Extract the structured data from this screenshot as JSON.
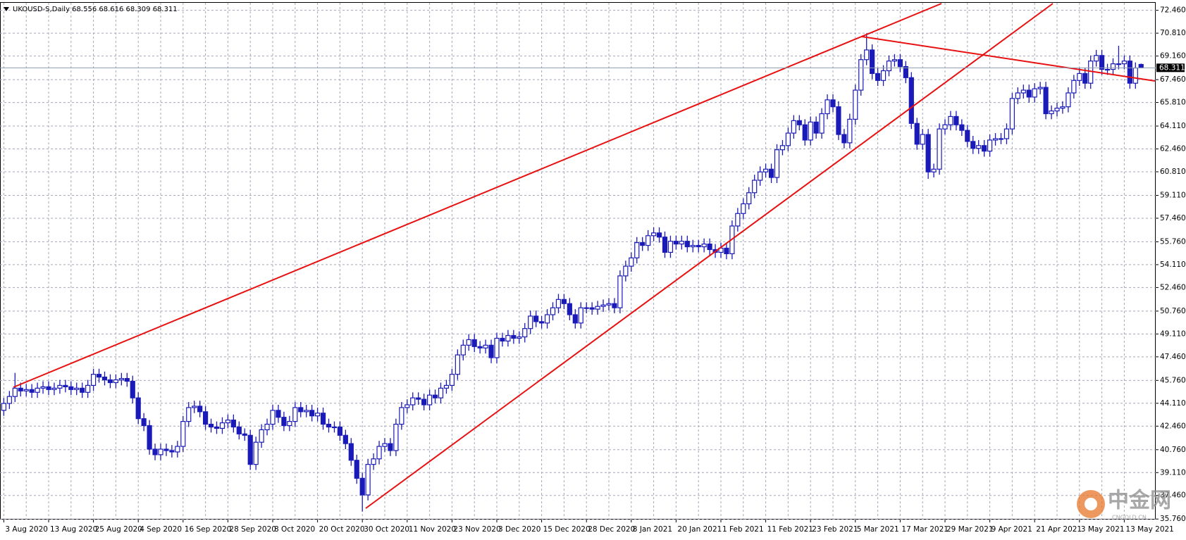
{
  "chart_data": {
    "type": "candlestick",
    "title": "UKOUSD-S,Daily  68.556 68.616 68.309 68.311",
    "categories": [
      "3 Aug 2020",
      null,
      null,
      null,
      null,
      null,
      null,
      null,
      "13 Aug 2020",
      null,
      null,
      null,
      null,
      null,
      null,
      null,
      "25 Aug 2020",
      null,
      null,
      null,
      null,
      null,
      null,
      null,
      "4 Sep 2020",
      null,
      null,
      null,
      null,
      null,
      null,
      null,
      "16 Sep 2020",
      null,
      null,
      null,
      null,
      null,
      null,
      null,
      "28 Sep 2020",
      null,
      null,
      null,
      null,
      null,
      null,
      null,
      "8 Oct 2020",
      null,
      null,
      null,
      null,
      null,
      null,
      null,
      "20 Oct 2020",
      null,
      null,
      null,
      null,
      null,
      null,
      null,
      "30 Oct 2020",
      null,
      null,
      null,
      null,
      null,
      null,
      null,
      "11 Nov 2020",
      null,
      null,
      null,
      null,
      null,
      null,
      null,
      "23 Nov 2020",
      null,
      null,
      null,
      null,
      null,
      null,
      null,
      "3 Dec 2020",
      null,
      null,
      null,
      null,
      null,
      null,
      null,
      "15 Dec 2020",
      null,
      null,
      null,
      null,
      null,
      null,
      null,
      "28 Dec 2020",
      null,
      null,
      null,
      null,
      null,
      null,
      null,
      "8 Jan 2021",
      null,
      null,
      null,
      null,
      null,
      null,
      null,
      "20 Jan 2021",
      null,
      null,
      null,
      null,
      null,
      null,
      null,
      "1 Feb 2021",
      null,
      null,
      null,
      null,
      null,
      null,
      null,
      "11 Feb 2021",
      null,
      null,
      null,
      null,
      null,
      null,
      null,
      "23 Feb 2021",
      null,
      null,
      null,
      null,
      null,
      null,
      null,
      "5 Mar 2021",
      null,
      null,
      null,
      null,
      null,
      null,
      null,
      "17 Mar 2021",
      null,
      null,
      null,
      null,
      null,
      null,
      null,
      "29 Mar 2021",
      null,
      null,
      null,
      null,
      null,
      null,
      null,
      "9 Apr 2021",
      null,
      null,
      null,
      null,
      null,
      null,
      null,
      "21 Apr 2021",
      null,
      null,
      null,
      null,
      null,
      null,
      null,
      "3 May 2021",
      null,
      null,
      null,
      null,
      null,
      null,
      null,
      "13 May 2021",
      null,
      null,
      null
    ],
    "open": [
      43.6,
      44.1,
      44.6,
      45.2,
      45.0,
      45.1,
      44.9,
      45.2,
      45.3,
      45.1,
      45.2,
      45.4,
      45.3,
      45.1,
      45.2,
      44.9,
      45.4,
      46.2,
      46.0,
      45.8,
      45.6,
      45.8,
      45.9,
      45.7,
      44.5,
      43.0,
      42.5,
      40.8,
      40.4,
      40.8,
      40.7,
      40.6,
      41.0,
      42.8,
      43.8,
      43.9,
      43.5,
      42.6,
      42.4,
      42.3,
      42.7,
      42.9,
      42.4,
      41.9,
      41.8,
      39.7,
      41.3,
      42.2,
      42.6,
      43.6,
      43.1,
      42.5,
      42.8,
      43.8,
      43.5,
      43.6,
      43.2,
      43.4,
      42.6,
      42.4,
      42.4,
      41.8,
      41.2,
      40.0,
      38.7,
      37.5,
      39.7,
      40.1,
      41.0,
      41.2,
      40.7,
      42.6,
      43.8,
      44.0,
      44.5,
      44.4,
      44.0,
      44.7,
      44.5,
      45.2,
      45.4,
      46.2,
      47.6,
      48.3,
      48.7,
      48.2,
      48.1,
      48.3,
      47.4,
      48.8,
      48.6,
      49.0,
      48.8,
      48.9,
      49.5,
      50.4,
      50.0,
      49.9,
      50.5,
      51.0,
      51.6,
      51.3,
      50.5,
      49.9,
      51.0,
      51.0,
      50.9,
      51.1,
      51.2,
      51.3,
      51.0,
      53.3,
      54.0,
      54.6,
      55.7,
      55.5,
      56.2,
      56.4,
      56.1,
      55.0,
      55.8,
      55.6,
      55.8,
      55.4,
      55.5,
      55.4,
      55.6,
      55.2,
      55.0,
      55.3,
      54.9,
      56.9,
      57.8,
      58.5,
      59.3,
      60.2,
      60.8,
      61.0,
      60.4,
      62.4,
      62.7,
      63.6,
      64.5,
      64.2,
      63.1,
      64.4,
      63.6,
      65.0,
      66.0,
      65.5,
      63.5,
      62.9,
      64.6,
      66.7,
      68.9,
      69.6,
      67.9,
      67.4,
      68.1,
      68.8,
      68.9,
      68.4,
      67.6,
      64.3,
      62.8,
      63.5,
      60.8,
      61.0,
      63.9,
      64.2,
      64.8,
      64.2,
      63.8,
      63.0,
      62.5,
      62.7,
      62.3,
      63.1,
      63.2,
      63.2,
      63.9,
      66.1,
      66.5,
      66.7,
      66.2,
      66.8,
      66.9,
      65.0,
      65.2,
      65.4,
      65.5,
      66.5,
      67.4,
      67.9,
      67.2,
      68.8,
      69.2,
      68.2,
      68.2,
      68.6,
      68.6,
      68.8,
      67.2,
      68.556
    ],
    "high": [
      44.5,
      45.0,
      46.3,
      45.6,
      45.5,
      45.5,
      45.6,
      45.7,
      45.7,
      45.6,
      45.8,
      45.8,
      45.7,
      45.6,
      45.6,
      45.8,
      46.6,
      46.6,
      46.4,
      46.2,
      46.2,
      46.3,
      46.3,
      46.1,
      44.9,
      43.4,
      42.9,
      41.2,
      41.2,
      41.2,
      41.1,
      41.4,
      43.2,
      44.2,
      44.3,
      44.3,
      43.9,
      43.0,
      42.8,
      43.1,
      43.3,
      43.3,
      42.8,
      42.3,
      42.2,
      41.7,
      42.6,
      43.0,
      44.0,
      44.0,
      43.5,
      43.2,
      44.2,
      44.2,
      44.0,
      44.0,
      43.8,
      43.8,
      43.0,
      42.8,
      42.8,
      42.2,
      41.6,
      40.4,
      39.1,
      40.1,
      40.5,
      41.4,
      41.6,
      41.6,
      43.0,
      44.2,
      44.4,
      44.9,
      44.9,
      44.8,
      45.1,
      45.1,
      45.6,
      45.8,
      46.6,
      48.0,
      48.7,
      49.1,
      49.1,
      48.6,
      48.7,
      48.7,
      49.2,
      49.2,
      49.4,
      49.4,
      49.3,
      49.9,
      50.8,
      50.8,
      50.4,
      50.9,
      51.4,
      52.0,
      52.0,
      51.7,
      50.9,
      51.4,
      51.4,
      51.4,
      51.5,
      51.6,
      51.7,
      51.7,
      53.7,
      54.4,
      55.0,
      56.1,
      56.1,
      56.6,
      56.8,
      56.8,
      56.5,
      56.2,
      56.2,
      56.2,
      56.2,
      55.9,
      55.9,
      56.0,
      56.0,
      55.6,
      55.7,
      55.7,
      57.3,
      58.2,
      58.9,
      59.7,
      60.6,
      61.2,
      61.4,
      61.4,
      62.8,
      63.1,
      64.0,
      64.9,
      64.9,
      64.6,
      64.8,
      64.8,
      65.4,
      66.4,
      66.4,
      65.9,
      63.9,
      65.0,
      67.1,
      69.3,
      70.8,
      70.0,
      68.3,
      68.5,
      69.2,
      69.3,
      69.3,
      68.8,
      68.0,
      64.7,
      63.9,
      63.9,
      61.4,
      64.3,
      64.6,
      65.2,
      65.2,
      64.6,
      64.2,
      63.4,
      63.1,
      63.1,
      63.5,
      63.6,
      63.6,
      64.3,
      66.5,
      66.9,
      67.1,
      67.1,
      67.2,
      67.3,
      67.3,
      65.6,
      65.8,
      65.9,
      66.9,
      67.8,
      68.3,
      68.3,
      69.2,
      69.6,
      69.6,
      68.6,
      69.0,
      69.9,
      69.2,
      69.2,
      68.7,
      68.616
    ],
    "low": [
      43.2,
      43.7,
      44.2,
      44.6,
      44.6,
      44.5,
      44.5,
      44.8,
      44.7,
      44.7,
      44.8,
      44.9,
      44.7,
      44.7,
      44.5,
      44.5,
      45.0,
      45.6,
      45.4,
      45.2,
      45.2,
      45.4,
      45.3,
      44.1,
      42.6,
      42.1,
      40.4,
      40.0,
      40.0,
      40.3,
      40.2,
      40.2,
      40.6,
      42.4,
      43.4,
      43.1,
      42.2,
      42.0,
      41.9,
      41.9,
      42.3,
      42.0,
      41.5,
      41.4,
      39.3,
      39.3,
      40.9,
      41.8,
      42.2,
      42.7,
      42.1,
      42.1,
      42.4,
      43.1,
      43.1,
      42.8,
      42.8,
      42.2,
      42.0,
      42.0,
      41.4,
      40.8,
      39.6,
      38.3,
      36.3,
      37.1,
      39.3,
      39.7,
      40.6,
      40.3,
      40.3,
      42.2,
      43.4,
      43.6,
      44.0,
      43.6,
      43.6,
      44.1,
      44.1,
      44.8,
      45.0,
      45.8,
      47.2,
      47.9,
      47.8,
      47.7,
      47.7,
      47.0,
      47.0,
      48.2,
      48.2,
      48.4,
      48.4,
      48.5,
      49.1,
      49.6,
      49.5,
      49.5,
      50.1,
      50.6,
      50.9,
      50.1,
      49.5,
      49.5,
      50.6,
      50.5,
      50.5,
      50.7,
      50.8,
      50.6,
      50.6,
      52.9,
      53.6,
      54.2,
      55.1,
      55.1,
      55.8,
      55.7,
      54.6,
      54.6,
      55.2,
      55.2,
      55.0,
      55.0,
      55.0,
      55.0,
      54.8,
      54.6,
      54.6,
      54.5,
      54.5,
      56.5,
      57.4,
      58.1,
      58.9,
      59.8,
      60.4,
      60.0,
      60.0,
      62.0,
      62.3,
      63.2,
      63.8,
      62.7,
      62.7,
      63.2,
      63.2,
      64.6,
      65.1,
      63.1,
      62.5,
      62.5,
      64.2,
      66.3,
      68.5,
      67.5,
      67.0,
      67.0,
      67.7,
      68.4,
      68.0,
      67.2,
      63.9,
      62.4,
      62.4,
      60.3,
      60.4,
      60.6,
      63.5,
      63.8,
      63.8,
      63.4,
      62.6,
      62.1,
      62.1,
      61.9,
      61.9,
      62.7,
      62.8,
      62.8,
      63.5,
      65.7,
      66.1,
      65.8,
      65.8,
      66.4,
      64.6,
      64.6,
      64.8,
      65.0,
      65.1,
      66.1,
      67.0,
      66.8,
      66.8,
      68.4,
      67.8,
      67.8,
      67.8,
      68.2,
      68.2,
      66.8,
      66.8,
      68.309
    ],
    "close": [
      44.1,
      44.6,
      45.2,
      45.0,
      45.1,
      44.9,
      45.2,
      45.3,
      45.1,
      45.2,
      45.4,
      45.3,
      45.1,
      45.2,
      44.9,
      45.4,
      46.2,
      46.0,
      45.8,
      45.6,
      45.8,
      45.9,
      45.7,
      44.5,
      43.0,
      42.5,
      40.8,
      40.4,
      40.8,
      40.7,
      40.6,
      41.0,
      42.8,
      43.8,
      43.9,
      43.5,
      42.6,
      42.4,
      42.3,
      42.7,
      42.9,
      42.4,
      41.9,
      41.8,
      39.7,
      41.3,
      42.2,
      42.6,
      43.6,
      43.1,
      42.5,
      42.8,
      43.8,
      43.5,
      43.6,
      43.2,
      43.4,
      42.6,
      42.4,
      42.4,
      41.8,
      41.2,
      40.0,
      38.7,
      37.5,
      39.7,
      40.1,
      41.0,
      41.2,
      40.7,
      42.6,
      43.8,
      44.0,
      44.5,
      44.4,
      44.0,
      44.7,
      44.5,
      45.2,
      45.4,
      46.2,
      47.6,
      48.3,
      48.7,
      48.2,
      48.1,
      48.3,
      47.4,
      48.8,
      48.6,
      49.0,
      48.8,
      48.9,
      49.5,
      50.4,
      50.0,
      49.9,
      50.5,
      51.0,
      51.6,
      51.3,
      50.5,
      49.9,
      51.0,
      51.0,
      50.9,
      51.1,
      51.2,
      51.3,
      51.0,
      53.3,
      54.0,
      54.6,
      55.7,
      55.5,
      56.2,
      56.4,
      56.1,
      55.0,
      55.8,
      55.6,
      55.8,
      55.4,
      55.5,
      55.4,
      55.6,
      55.2,
      55.0,
      55.3,
      54.9,
      56.9,
      57.8,
      58.5,
      59.3,
      60.2,
      60.8,
      61.0,
      60.4,
      62.4,
      62.7,
      63.6,
      64.5,
      64.2,
      63.1,
      64.4,
      63.6,
      65.0,
      66.0,
      65.5,
      63.5,
      62.9,
      64.6,
      66.7,
      68.9,
      69.6,
      67.9,
      67.4,
      68.1,
      68.8,
      68.9,
      68.4,
      67.6,
      64.3,
      62.8,
      63.5,
      60.8,
      61.0,
      63.9,
      64.2,
      64.8,
      64.2,
      63.8,
      63.0,
      62.5,
      62.7,
      62.3,
      63.1,
      63.2,
      63.2,
      63.9,
      66.1,
      66.5,
      66.7,
      66.2,
      66.8,
      66.9,
      65.0,
      65.2,
      65.4,
      65.5,
      66.5,
      67.4,
      67.9,
      67.2,
      68.8,
      69.2,
      68.2,
      68.2,
      68.6,
      68.6,
      68.8,
      67.2,
      68.3,
      68.311
    ],
    "up_color": "#ffffff",
    "down_color": "#1a1ab8",
    "outline_color": "#1a1ab8",
    "ylim": [
      35.72,
      73.0
    ],
    "yticks": [
      {
        "value": 72.46,
        "label": "72.460"
      },
      {
        "value": 70.81,
        "label": "70.810"
      },
      {
        "value": 69.16,
        "label": "69.160"
      },
      {
        "value": 67.46,
        "label": "67.460"
      },
      {
        "value": 65.81,
        "label": "65.810"
      },
      {
        "value": 64.11,
        "label": "64.110"
      },
      {
        "value": 62.46,
        "label": "62.460"
      },
      {
        "value": 60.81,
        "label": "60.810"
      },
      {
        "value": 59.11,
        "label": "59.110"
      },
      {
        "value": 57.46,
        "label": "57.460"
      },
      {
        "value": 55.76,
        "label": "55.760"
      },
      {
        "value": 54.11,
        "label": "54.110"
      },
      {
        "value": 52.46,
        "label": "52.460"
      },
      {
        "value": 50.76,
        "label": "50.760"
      },
      {
        "value": 49.11,
        "label": "49.110"
      },
      {
        "value": 47.46,
        "label": "47.460"
      },
      {
        "value": 45.76,
        "label": "45.760"
      },
      {
        "value": 44.11,
        "label": "44.110"
      },
      {
        "value": 42.46,
        "label": "42.460"
      },
      {
        "value": 40.76,
        "label": "40.760"
      },
      {
        "value": 39.11,
        "label": "39.110"
      },
      {
        "value": 37.46,
        "label": "37.460"
      },
      {
        "value": 35.76,
        "label": "35.760"
      }
    ],
    "current_price": {
      "value": 68.311,
      "label": "68.311"
    },
    "grid": true,
    "watermark": {
      "name": "中金网",
      "site": "CNGOLD.CN"
    }
  }
}
